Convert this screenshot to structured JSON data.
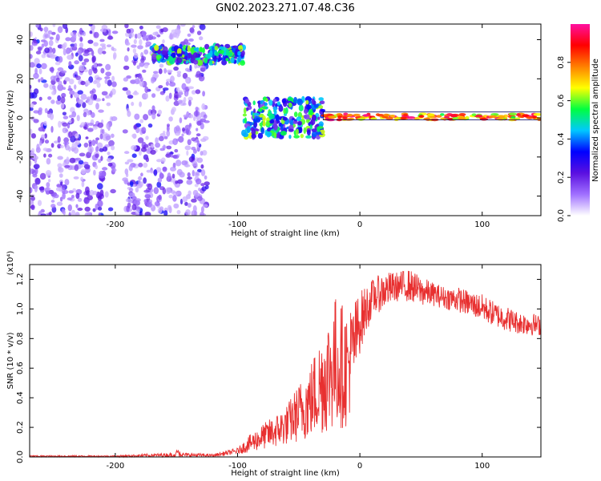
{
  "title": "GN02.2023.271.07.48.C36",
  "chart_data": [
    {
      "type": "heatmap",
      "xlabel": "Height of straight line (km)",
      "ylabel": "Frequency (Hz)",
      "xlim": [
        -270,
        148
      ],
      "ylim": [
        -50,
        48
      ],
      "xticks": [
        -200,
        -100,
        0,
        100
      ],
      "yticks": [
        -40,
        -20,
        0,
        20,
        40
      ],
      "colorbar": {
        "label": "Normalized spectral amplitude",
        "range": [
          0,
          1
        ],
        "ticks": [
          0.0,
          0.2,
          0.4,
          0.6,
          0.8
        ],
        "colors": [
          "#ffffff",
          "#a070ff",
          "#5a10e0",
          "#0000ff",
          "#00c8ff",
          "#00ff40",
          "#ffff00",
          "#ff8000",
          "#ff0000",
          "#ff10a0"
        ]
      },
      "regions": [
        {
          "name": "diffuse noise",
          "x": [
            -270,
            -125
          ],
          "y": [
            -50,
            48
          ],
          "amplitude": 0.25
        },
        {
          "name": "upper band",
          "x": [
            -170,
            -95
          ],
          "y": [
            28,
            37
          ],
          "amplitude": 0.45
        },
        {
          "name": "scattered band",
          "x": [
            -95,
            -30
          ],
          "y": [
            -10,
            10
          ],
          "amplitude": 0.4
        },
        {
          "name": "narrow line",
          "x": [
            -30,
            148
          ],
          "y": [
            -1,
            2
          ],
          "amplitude": 0.9
        }
      ]
    },
    {
      "type": "line",
      "xlabel": "Height of straight line (km)",
      "ylabel": "SNR (10 * v/v)",
      "y_multiplier": "(x10⁴)",
      "xlim": [
        -270,
        148
      ],
      "ylim": [
        0,
        1.3
      ],
      "xticks": [
        -200,
        -100,
        0,
        100
      ],
      "yticks": [
        0.0,
        0.2,
        0.4,
        0.6,
        0.8,
        1.0,
        1.2
      ],
      "series_color": "#e83030",
      "envelope": {
        "x": [
          -270,
          -200,
          -150,
          -120,
          -100,
          -90,
          -80,
          -70,
          -60,
          -50,
          -40,
          -30,
          -20,
          -10,
          0,
          10,
          20,
          30,
          40,
          50,
          60,
          70,
          80,
          90,
          100,
          110,
          120,
          130,
          140,
          148
        ],
        "low": [
          0.0,
          0.0,
          0.0,
          0.0,
          0.02,
          0.03,
          0.05,
          0.06,
          0.08,
          0.1,
          0.12,
          0.15,
          0.18,
          0.2,
          0.7,
          0.95,
          1.0,
          1.05,
          1.05,
          1.02,
          1.02,
          1.0,
          0.98,
          0.95,
          0.92,
          0.88,
          0.85,
          0.83,
          0.82,
          0.82
        ],
        "high": [
          0.01,
          0.01,
          0.03,
          0.02,
          0.06,
          0.15,
          0.22,
          0.28,
          0.35,
          0.5,
          0.65,
          0.88,
          1.1,
          1.0,
          1.12,
          1.2,
          1.25,
          1.25,
          1.27,
          1.22,
          1.18,
          1.15,
          1.15,
          1.12,
          1.1,
          1.05,
          1.02,
          0.98,
          0.98,
          0.95
        ]
      }
    }
  ]
}
